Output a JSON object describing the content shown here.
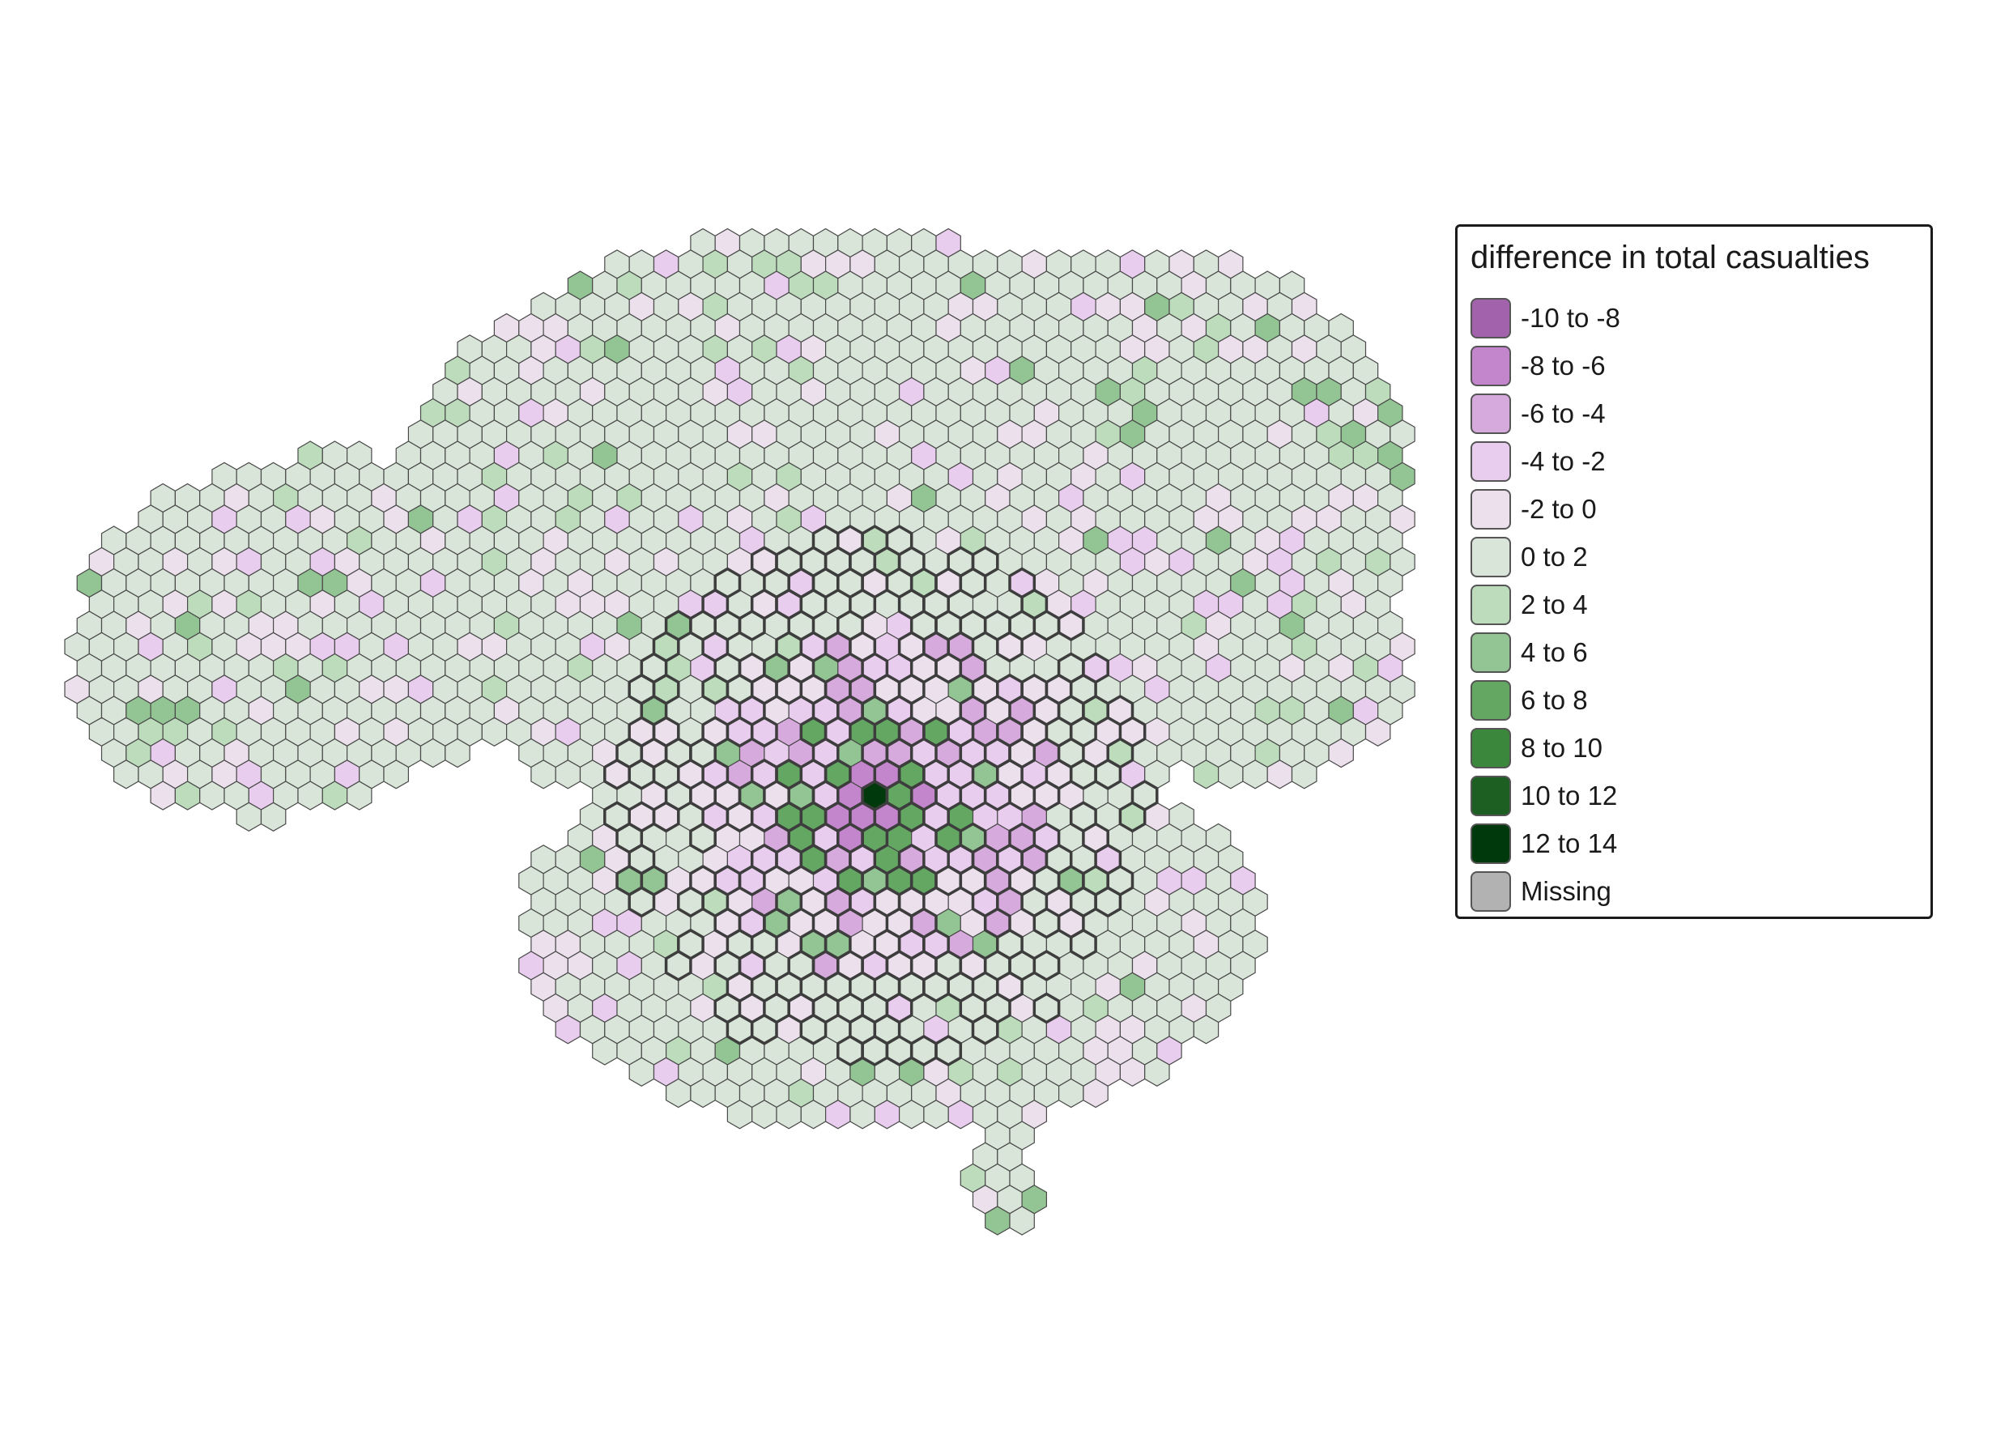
{
  "legend": {
    "title": "difference in total casualties",
    "items": [
      {
        "label": "-10 to -8",
        "color": "#a263ac"
      },
      {
        "label": "-8 to -6",
        "color": "#c385cb"
      },
      {
        "label": "-6 to -4",
        "color": "#d7aadd"
      },
      {
        "label": "-4 to -2",
        "color": "#e9cdee"
      },
      {
        "label": "-2 to 0",
        "color": "#ebe0ec"
      },
      {
        "label": "0 to 2",
        "color": "#d8e5d8"
      },
      {
        "label": "2 to 4",
        "color": "#bcdcbc"
      },
      {
        "label": "4 to 6",
        "color": "#93c493"
      },
      {
        "label": "6 to 8",
        "color": "#63a763"
      },
      {
        "label": "8 to 10",
        "color": "#3b883d"
      },
      {
        "label": "10 to 12",
        "color": "#1d5e22"
      },
      {
        "label": "12 to 14",
        "color": "#00390c"
      },
      {
        "label": "Missing",
        "color": "#b2b2b2"
      }
    ]
  },
  "map": {
    "name": "hex-grid-map",
    "outline_color": "#4a4a4a",
    "highlight_outline_color": "#3d3d3d"
  }
}
